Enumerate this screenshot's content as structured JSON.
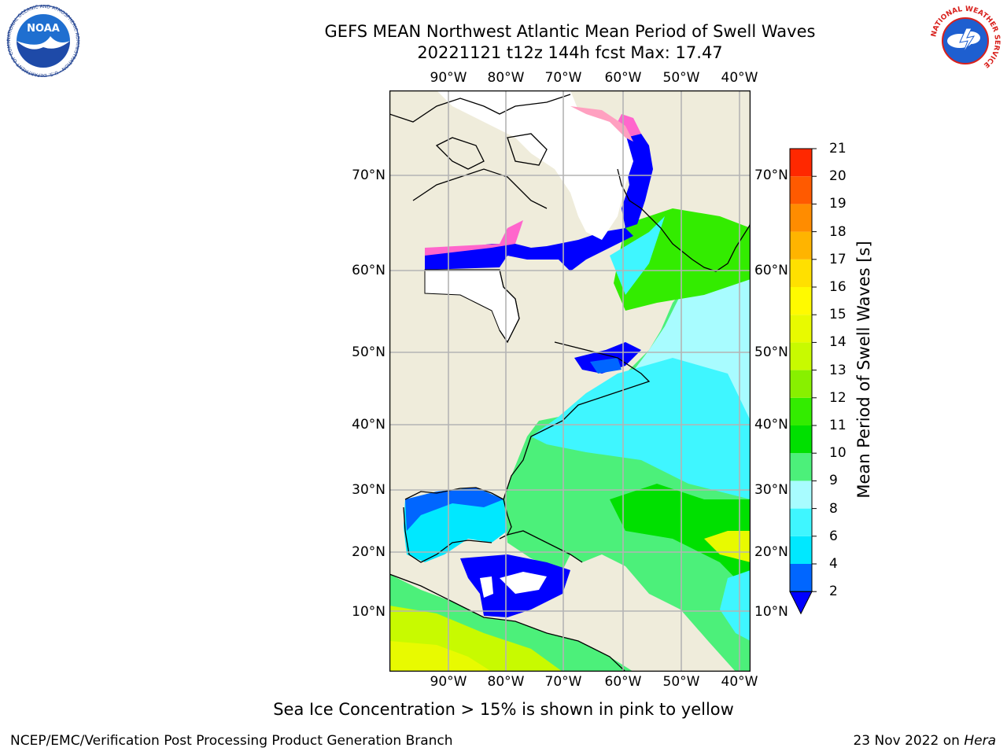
{
  "header": {
    "title": "GEFS MEAN Northwest Atlantic Mean Period of Swell Waves",
    "subtitle": "20221121 t12z 144h fcst   Max: 17.47"
  },
  "map": {
    "lon_labels": [
      "90°W",
      "80°W",
      "70°W",
      "60°W",
      "50°W",
      "40°W"
    ],
    "lat_labels": [
      "70°N",
      "60°N",
      "50°N",
      "40°N",
      "30°N",
      "20°N",
      "10°N"
    ],
    "colors": {
      "land": "#efecdb",
      "ice_free_white": "#ffffff",
      "grid": "#b4b4b4",
      "coast": "#000000"
    }
  },
  "colorbar": {
    "label": "Mean Period of Swell Waves [s]",
    "ticks": [
      "2",
      "4",
      "6",
      "8",
      "9",
      "10",
      "11",
      "12",
      "13",
      "14",
      "15",
      "16",
      "17",
      "18",
      "19",
      "20",
      "21"
    ],
    "colors": [
      "#0066ff",
      "#00e8ff",
      "#3ff6ff",
      "#a8fcff",
      "#4cf07a",
      "#00e000",
      "#33ec00",
      "#88f000",
      "#c8fa00",
      "#e8fa00",
      "#fffa00",
      "#ffe000",
      "#ffb400",
      "#ff8c00",
      "#ff5a00",
      "#ff2800"
    ],
    "under_color": "#0000ff",
    "top_color": "#ff0000"
  },
  "footer": {
    "caption": "Sea Ice Concentration > 15% is shown in pink to yellow",
    "credit": "NCEP/EMC/Verification Post Processing Product Generation Branch",
    "date": "23 Nov 2022 on ",
    "system": "Hera"
  },
  "logos": {
    "noaa_text": "NOAA",
    "noaa_ring": "NATIONAL OCEANIC AND ATMOSPHERIC ADMINISTRATION · U.S. DEPARTMENT OF COMMERCE",
    "nws_ring": "NATIONAL WEATHER SERVICE"
  }
}
